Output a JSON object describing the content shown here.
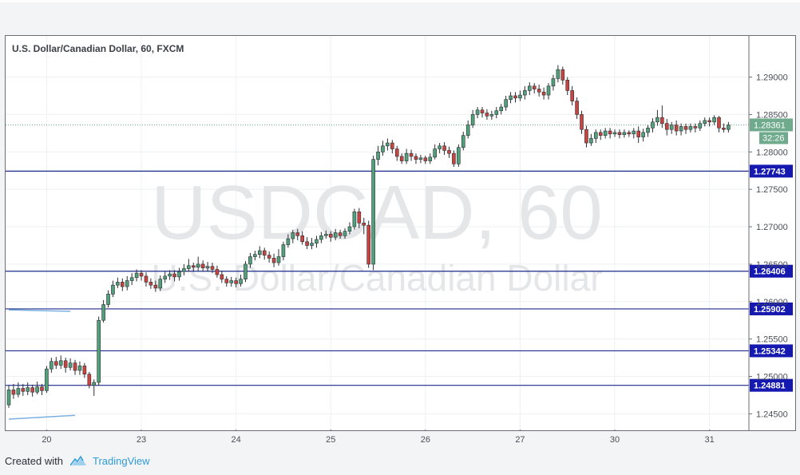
{
  "footer": {
    "created_with": "Created with",
    "brand": "TradingView"
  },
  "colors": {
    "up": "#52a07a",
    "down": "#c9443f",
    "level_line": "#1c2a8c",
    "label_bg": "#1519b0",
    "price_bg": "#6faa8c",
    "trend": "#7ab0e0",
    "watermark": "#e5e6e8",
    "grid": "#eef0f2",
    "axis_text": "#4a4e57"
  },
  "chart_data": {
    "type": "candlestick",
    "title": "U.S. Dollar/Canadian Dollar, 60, FXCM",
    "watermark": {
      "symbol": "USDCAD, 60",
      "description": "U.S. Dollar/Canadian Dollar"
    },
    "x_ticks": [
      "20",
      "23",
      "24",
      "25",
      "26",
      "27",
      "30",
      "31"
    ],
    "y_ticks": [
      "1.29000",
      "1.28500",
      "1.28000",
      "1.27500",
      "1.27000",
      "1.26500",
      "1.26000",
      "1.25500",
      "1.25000",
      "1.24500"
    ],
    "ylim": [
      1.2428,
      1.2955
    ],
    "current_price": "1.28361",
    "countdown": "32:26",
    "levels": [
      "1.27743",
      "1.26406",
      "1.25902",
      "1.25342",
      "1.24881"
    ],
    "trendlines": [
      {
        "from": [
          0,
          1.2589
        ],
        "to": [
          13,
          1.2587
        ]
      },
      {
        "from": [
          0,
          1.2443
        ],
        "to": [
          14,
          1.2448
        ]
      }
    ],
    "candles": [
      [
        1.2462,
        1.2482,
        1.2458,
        1.2488
      ],
      [
        1.2482,
        1.2476,
        1.247,
        1.249
      ],
      [
        1.2476,
        1.2484,
        1.2472,
        1.2492
      ],
      [
        1.2484,
        1.248,
        1.2474,
        1.249
      ],
      [
        1.248,
        1.2485,
        1.2475,
        1.2492
      ],
      [
        1.2485,
        1.2479,
        1.2473,
        1.2489
      ],
      [
        1.2479,
        1.2486,
        1.2476,
        1.2493
      ],
      [
        1.2486,
        1.2481,
        1.2475,
        1.249
      ],
      [
        1.2481,
        1.251,
        1.2478,
        1.2514
      ],
      [
        1.251,
        1.252,
        1.2505,
        1.2525
      ],
      [
        1.252,
        1.2515,
        1.251,
        1.2526
      ],
      [
        1.2515,
        1.2521,
        1.251,
        1.2528
      ],
      [
        1.2521,
        1.2512,
        1.2505,
        1.2525
      ],
      [
        1.2512,
        1.2518,
        1.2508,
        1.2524
      ],
      [
        1.2518,
        1.2508,
        1.2502,
        1.2522
      ],
      [
        1.2508,
        1.2514,
        1.2502,
        1.252
      ],
      [
        1.2514,
        1.2503,
        1.2498,
        1.2518
      ],
      [
        1.2503,
        1.2488,
        1.2484,
        1.2506
      ],
      [
        1.2488,
        1.2492,
        1.2474,
        1.2496
      ],
      [
        1.2492,
        1.2575,
        1.2488,
        1.258
      ],
      [
        1.2575,
        1.2596,
        1.2572,
        1.2602
      ],
      [
        1.2596,
        1.261,
        1.2592,
        1.2615
      ],
      [
        1.261,
        1.2622,
        1.2606,
        1.2628
      ],
      [
        1.2622,
        1.2626,
        1.2618,
        1.2632
      ],
      [
        1.2626,
        1.262,
        1.2614,
        1.2631
      ],
      [
        1.262,
        1.2628,
        1.2615,
        1.2634
      ],
      [
        1.2628,
        1.2632,
        1.2622,
        1.2638
      ],
      [
        1.2632,
        1.2638,
        1.2627,
        1.2643
      ],
      [
        1.2638,
        1.2634,
        1.2628,
        1.2642
      ],
      [
        1.2634,
        1.2626,
        1.262,
        1.2639
      ],
      [
        1.2626,
        1.2622,
        1.2617,
        1.2631
      ],
      [
        1.2622,
        1.2618,
        1.2613,
        1.2628
      ],
      [
        1.2618,
        1.263,
        1.2614,
        1.2635
      ],
      [
        1.263,
        1.2634,
        1.2625,
        1.264
      ],
      [
        1.2634,
        1.2637,
        1.2629,
        1.2642
      ],
      [
        1.2637,
        1.2633,
        1.2627,
        1.2642
      ],
      [
        1.2633,
        1.264,
        1.2628,
        1.2645
      ],
      [
        1.264,
        1.2644,
        1.2635,
        1.265
      ],
      [
        1.2644,
        1.2648,
        1.264,
        1.2657
      ],
      [
        1.2648,
        1.2646,
        1.264,
        1.2652
      ],
      [
        1.2646,
        1.265,
        1.2641,
        1.266
      ],
      [
        1.265,
        1.2645,
        1.264,
        1.2655
      ],
      [
        1.2645,
        1.2647,
        1.264,
        1.2653
      ],
      [
        1.2647,
        1.2643,
        1.2638,
        1.2652
      ],
      [
        1.2643,
        1.2636,
        1.2632,
        1.2648
      ],
      [
        1.2636,
        1.263,
        1.2625,
        1.2641
      ],
      [
        1.263,
        1.2625,
        1.262,
        1.2634
      ],
      [
        1.2625,
        1.2628,
        1.262,
        1.2633
      ],
      [
        1.2628,
        1.2624,
        1.2619,
        1.2632
      ],
      [
        1.2624,
        1.263,
        1.262,
        1.2636
      ],
      [
        1.263,
        1.265,
        1.2626,
        1.2654
      ],
      [
        1.265,
        1.266,
        1.2645,
        1.2665
      ],
      [
        1.266,
        1.2663,
        1.2655,
        1.2668
      ],
      [
        1.2663,
        1.2668,
        1.2658,
        1.2674
      ],
      [
        1.2668,
        1.2662,
        1.2656,
        1.2672
      ],
      [
        1.2662,
        1.2658,
        1.2652,
        1.2667
      ],
      [
        1.2658,
        1.2652,
        1.2646,
        1.2664
      ],
      [
        1.2652,
        1.266,
        1.2648,
        1.267
      ],
      [
        1.266,
        1.2676,
        1.2655,
        1.268
      ],
      [
        1.2676,
        1.2684,
        1.2672,
        1.269
      ],
      [
        1.2684,
        1.2692,
        1.2678,
        1.2696
      ],
      [
        1.2692,
        1.2688,
        1.2682,
        1.2697
      ],
      [
        1.2688,
        1.268,
        1.2676,
        1.2694
      ],
      [
        1.268,
        1.2675,
        1.267,
        1.2686
      ],
      [
        1.2675,
        1.2678,
        1.267,
        1.2685
      ],
      [
        1.2678,
        1.2683,
        1.2672,
        1.2688
      ],
      [
        1.2683,
        1.2688,
        1.2678,
        1.2693
      ],
      [
        1.2688,
        1.269,
        1.2684,
        1.2695
      ],
      [
        1.269,
        1.2686,
        1.268,
        1.2694
      ],
      [
        1.2686,
        1.2692,
        1.2682,
        1.2697
      ],
      [
        1.2692,
        1.2688,
        1.2684,
        1.2696
      ],
      [
        1.2688,
        1.2694,
        1.2684,
        1.2698
      ],
      [
        1.2694,
        1.27,
        1.269,
        1.2706
      ],
      [
        1.27,
        1.272,
        1.2696,
        1.2724
      ],
      [
        1.272,
        1.2705,
        1.2698,
        1.2725
      ],
      [
        1.2705,
        1.2702,
        1.269,
        1.2712
      ],
      [
        1.2702,
        1.265,
        1.2645,
        1.2708
      ],
      [
        1.265,
        1.279,
        1.2642,
        1.2795
      ],
      [
        1.279,
        1.28,
        1.2782,
        1.2808
      ],
      [
        1.28,
        1.2808,
        1.2795,
        1.2815
      ],
      [
        1.2808,
        1.2812,
        1.2802,
        1.2818
      ],
      [
        1.2812,
        1.2804,
        1.2798,
        1.2816
      ],
      [
        1.2804,
        1.2794,
        1.2788,
        1.2808
      ],
      [
        1.2794,
        1.2788,
        1.2784,
        1.2798
      ],
      [
        1.2788,
        1.2798,
        1.2784,
        1.2804
      ],
      [
        1.2798,
        1.2794,
        1.2788,
        1.2803
      ],
      [
        1.2794,
        1.279,
        1.2784,
        1.2798
      ],
      [
        1.279,
        1.2792,
        1.2785,
        1.2796
      ],
      [
        1.2792,
        1.2788,
        1.2784,
        1.2795
      ],
      [
        1.2788,
        1.2793,
        1.2784,
        1.2798
      ],
      [
        1.2793,
        1.2804,
        1.279,
        1.281
      ],
      [
        1.2804,
        1.2808,
        1.2798,
        1.2812
      ],
      [
        1.2808,
        1.2802,
        1.2796,
        1.2813
      ],
      [
        1.2802,
        1.2798,
        1.2792,
        1.2807
      ],
      [
        1.2798,
        1.2784,
        1.278,
        1.2802
      ],
      [
        1.2784,
        1.2806,
        1.278,
        1.281
      ],
      [
        1.2806,
        1.2822,
        1.2802,
        1.2827
      ],
      [
        1.2822,
        1.2836,
        1.2818,
        1.2842
      ],
      [
        1.2836,
        1.285,
        1.2832,
        1.2856
      ],
      [
        1.285,
        1.2856,
        1.2845,
        1.286
      ],
      [
        1.2856,
        1.2852,
        1.2846,
        1.286
      ],
      [
        1.2852,
        1.2848,
        1.2843,
        1.2857
      ],
      [
        1.2848,
        1.285,
        1.2843,
        1.2855
      ],
      [
        1.285,
        1.2855,
        1.2845,
        1.286
      ],
      [
        1.2855,
        1.286,
        1.285,
        1.2864
      ],
      [
        1.286,
        1.287,
        1.2855,
        1.2875
      ],
      [
        1.287,
        1.2875,
        1.2865,
        1.288
      ],
      [
        1.2875,
        1.2872,
        1.2866,
        1.288
      ],
      [
        1.2872,
        1.2876,
        1.2868,
        1.2882
      ],
      [
        1.2876,
        1.2882,
        1.287,
        1.2888
      ],
      [
        1.2882,
        1.2888,
        1.2876,
        1.2893
      ],
      [
        1.2888,
        1.2884,
        1.2878,
        1.2892
      ],
      [
        1.2884,
        1.288,
        1.2874,
        1.289
      ],
      [
        1.288,
        1.2876,
        1.287,
        1.2886
      ],
      [
        1.2876,
        1.2888,
        1.287,
        1.2892
      ],
      [
        1.2888,
        1.2898,
        1.2882,
        1.2903
      ],
      [
        1.2898,
        1.291,
        1.2893,
        1.2916
      ],
      [
        1.291,
        1.2896,
        1.289,
        1.2914
      ],
      [
        1.2896,
        1.2882,
        1.2876,
        1.29
      ],
      [
        1.2882,
        1.2868,
        1.2862,
        1.2888
      ],
      [
        1.2868,
        1.285,
        1.2844,
        1.2873
      ],
      [
        1.285,
        1.283,
        1.2824,
        1.2855
      ],
      [
        1.283,
        1.2812,
        1.2806,
        1.2835
      ],
      [
        1.2812,
        1.2818,
        1.2808,
        1.2824
      ],
      [
        1.2818,
        1.2826,
        1.2812,
        1.283
      ],
      [
        1.2826,
        1.2822,
        1.2816,
        1.283
      ],
      [
        1.2822,
        1.2828,
        1.2818,
        1.2832
      ],
      [
        1.2828,
        1.2824,
        1.2818,
        1.2832
      ],
      [
        1.2824,
        1.2826,
        1.282,
        1.283
      ],
      [
        1.2826,
        1.2823,
        1.2818,
        1.283
      ],
      [
        1.2823,
        1.2826,
        1.2819,
        1.283
      ],
      [
        1.2826,
        1.2824,
        1.282,
        1.2829
      ],
      [
        1.2824,
        1.2828,
        1.2818,
        1.2832
      ],
      [
        1.2828,
        1.282,
        1.2812,
        1.2834
      ],
      [
        1.282,
        1.2826,
        1.2814,
        1.2831
      ],
      [
        1.2826,
        1.2832,
        1.282,
        1.2836
      ],
      [
        1.2832,
        1.284,
        1.2826,
        1.2845
      ],
      [
        1.284,
        1.2846,
        1.2835,
        1.2856
      ],
      [
        1.2846,
        1.2838,
        1.2832,
        1.2862
      ],
      [
        1.2838,
        1.283,
        1.2822,
        1.2844
      ],
      [
        1.283,
        1.2836,
        1.2824,
        1.284
      ],
      [
        1.2836,
        1.2828,
        1.2822,
        1.2842
      ],
      [
        1.2828,
        1.2834,
        1.2822,
        1.2838
      ],
      [
        1.2834,
        1.283,
        1.2824,
        1.2838
      ],
      [
        1.283,
        1.2834,
        1.2826,
        1.2838
      ],
      [
        1.2834,
        1.2832,
        1.2826,
        1.2838
      ],
      [
        1.2832,
        1.2838,
        1.2828,
        1.2842
      ],
      [
        1.2838,
        1.2842,
        1.2834,
        1.2846
      ],
      [
        1.2842,
        1.284,
        1.2834,
        1.2846
      ],
      [
        1.284,
        1.2846,
        1.2836,
        1.2849
      ],
      [
        1.2846,
        1.2832,
        1.2826,
        1.2848
      ],
      [
        1.2832,
        1.283,
        1.2826,
        1.2838
      ],
      [
        1.283,
        1.2836,
        1.2826,
        1.284
      ]
    ]
  }
}
